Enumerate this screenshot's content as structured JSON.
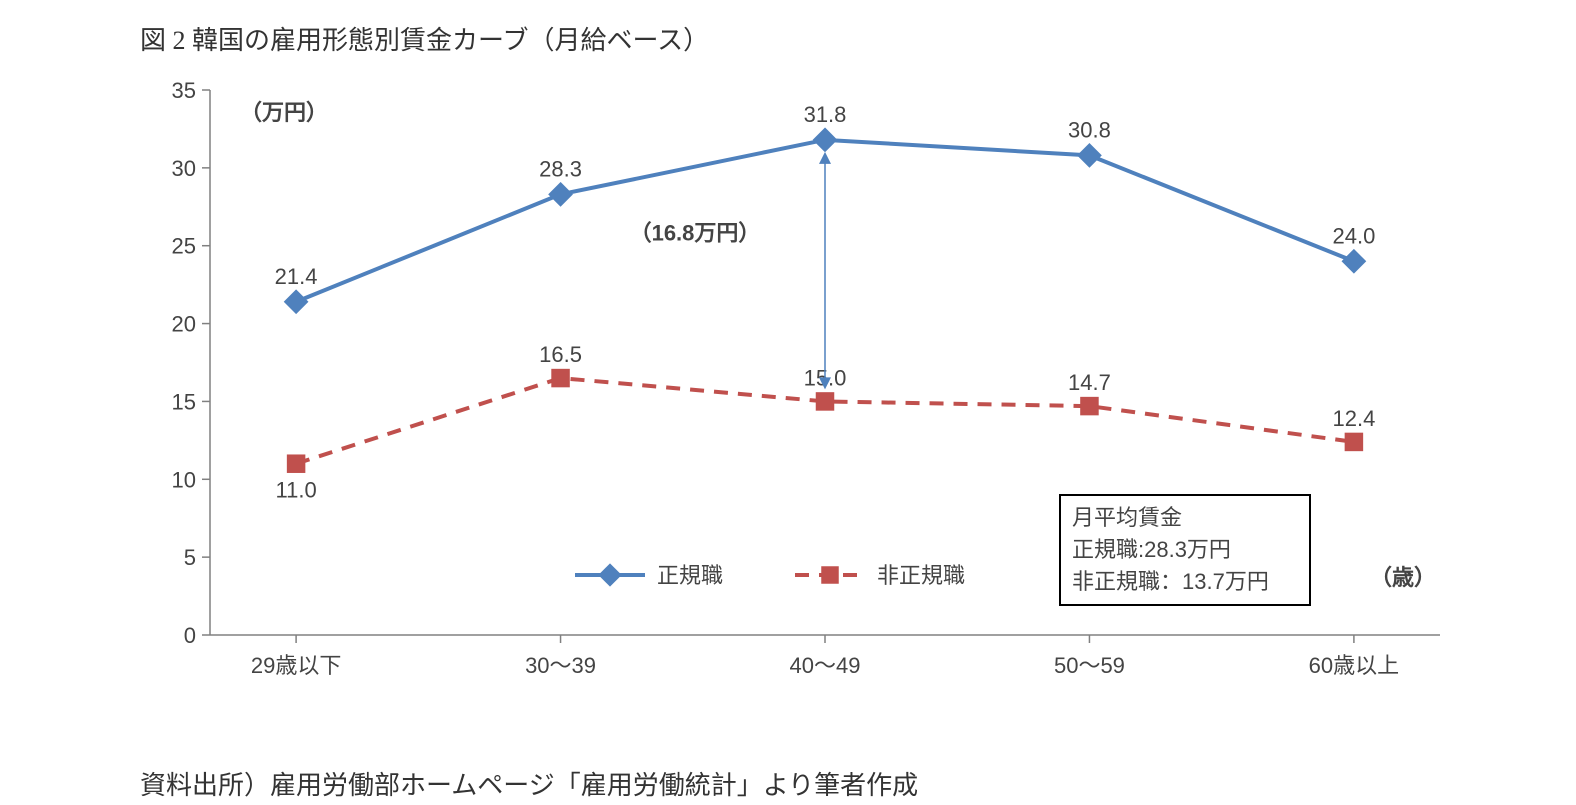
{
  "title": "図 2 韓国の雇用形態別賃金カーブ（月給ベース）",
  "source": "資料出所）雇用労働部ホームページ「雇用労働統計」より筆者作成",
  "chart": {
    "type": "line",
    "background_color": "#ffffff",
    "axis_color": "#808080",
    "tick_color": "#808080",
    "label_fontsize": 22,
    "y_unit_label": "（万円）",
    "x_unit_label": "（歳）",
    "ylim": [
      0,
      35
    ],
    "ytick_step": 5,
    "yticks": [
      0,
      5,
      10,
      15,
      20,
      25,
      30,
      35
    ],
    "categories": [
      "29歳以下",
      "30～39",
      "40～49",
      "50～59",
      "60歳以上"
    ],
    "series": [
      {
        "name": "正規職",
        "legend_label": "正規職",
        "color": "#4f81bd",
        "line_width": 4,
        "dash": "solid",
        "marker": "diamond",
        "marker_size": 14,
        "values": [
          21.4,
          28.3,
          31.8,
          30.8,
          24.0
        ],
        "value_labels": [
          "21.4",
          "28.3",
          "31.8",
          "30.8",
          "24.0"
        ],
        "label_position": "above"
      },
      {
        "name": "非正規職",
        "legend_label": "非正規職",
        "color": "#c0504d",
        "line_width": 4,
        "dash": "14,10",
        "marker": "square",
        "marker_size": 14,
        "values": [
          11.0,
          16.5,
          15.0,
          14.7,
          12.4
        ],
        "value_labels": [
          "11.0",
          "16.5",
          "15.0",
          "14.7",
          "12.4"
        ],
        "label_position": "mixed"
      }
    ],
    "gap_annotation": {
      "category_index": 2,
      "label": "（16.8万円）",
      "arrow_color": "#4f81bd",
      "arrow_width": 1.5
    },
    "legend": {
      "position": "bottom-center",
      "items": [
        {
          "series_index": 0,
          "text": "正規職"
        },
        {
          "series_index": 1,
          "text": "非正規職"
        }
      ]
    },
    "info_box": {
      "border_color": "#000000",
      "border_width": 2,
      "background": "#ffffff",
      "lines": [
        "月平均賃金",
        "正規職:28.3万円",
        "非正規職：13.7万円"
      ]
    }
  }
}
